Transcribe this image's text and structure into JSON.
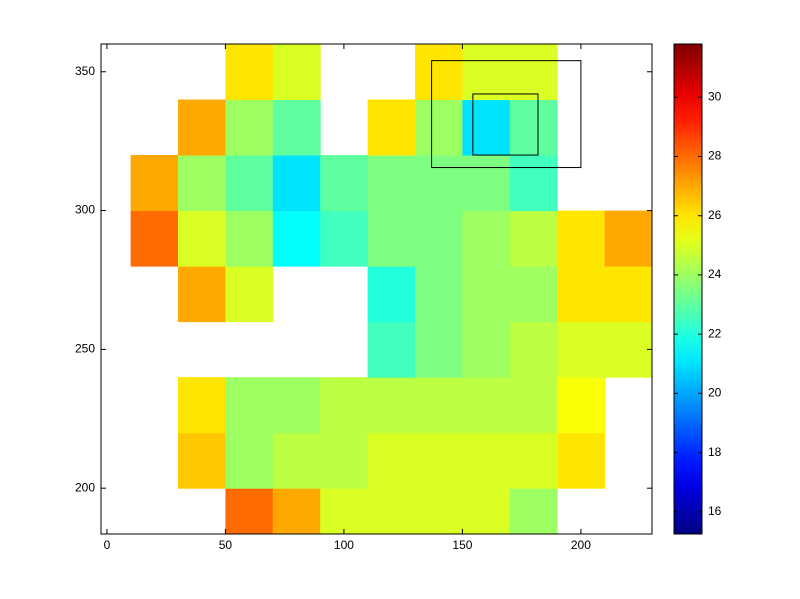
{
  "chart_data": {
    "type": "heatmap",
    "colormap": "jet",
    "x": [
      0,
      20,
      40,
      60,
      80,
      100,
      120,
      140,
      160,
      180,
      200,
      220
    ],
    "y": [
      190,
      210,
      230,
      250,
      270,
      290,
      310,
      330,
      350
    ],
    "z": [
      [
        null,
        null,
        null,
        28,
        27,
        25,
        25,
        25,
        25,
        24,
        null,
        null
      ],
      [
        null,
        null,
        26.5,
        24,
        24.5,
        24.5,
        25,
        25,
        25,
        25,
        26,
        null
      ],
      [
        null,
        null,
        26,
        24,
        24,
        24.5,
        24.5,
        24.5,
        24.5,
        24.5,
        25.5,
        null
      ],
      [
        null,
        null,
        null,
        null,
        null,
        null,
        22.5,
        23.5,
        24,
        24.5,
        25,
        25
      ],
      [
        null,
        null,
        27,
        25,
        null,
        null,
        22,
        23.5,
        24,
        24,
        26,
        26
      ],
      [
        null,
        28,
        25,
        24,
        21.5,
        22.5,
        23.5,
        23.5,
        24,
        24.5,
        26,
        27
      ],
      [
        null,
        27,
        24,
        23,
        21,
        23,
        23.5,
        23.5,
        23.5,
        22.5,
        null,
        null
      ],
      [
        null,
        null,
        27,
        24,
        23,
        null,
        26,
        24,
        21,
        23,
        null,
        null
      ],
      [
        null,
        null,
        null,
        26,
        25,
        null,
        null,
        26,
        25,
        25,
        null,
        null
      ]
    ],
    "xlim": [
      -2.5,
      230
    ],
    "ylim": [
      183.5,
      360
    ],
    "xticks": [
      0,
      50,
      100,
      150,
      200
    ],
    "yticks": [
      200,
      250,
      300,
      350
    ],
    "clim": [
      15.25,
      31.8
    ],
    "cticks": [
      16,
      18,
      20,
      22,
      24,
      26,
      28,
      30
    ],
    "boxes": [
      {
        "x": [
          137,
          200
        ],
        "y": [
          315.5,
          354
        ]
      },
      {
        "x": [
          154.4,
          181.9
        ],
        "y": [
          320,
          342
        ]
      }
    ]
  }
}
